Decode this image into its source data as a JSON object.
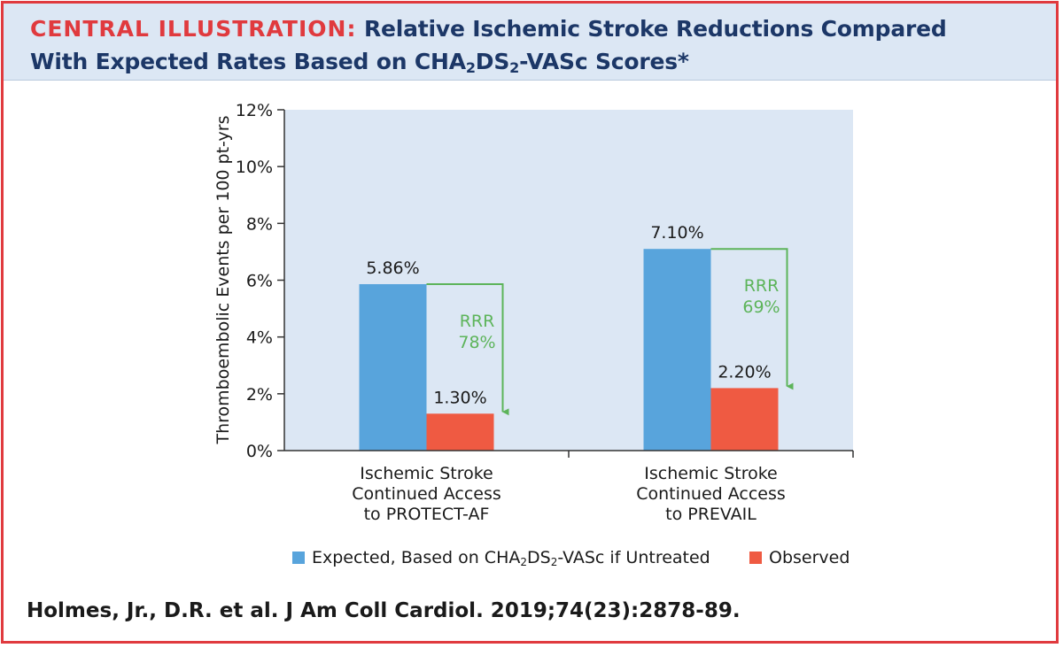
{
  "header": {
    "kicker": "CENTRAL ILLUSTRATION:",
    "title_part1": " Relative Ischemic Stroke Reductions Compared",
    "title_part2": "With Expected Rates Based on CHA",
    "sub1": "2",
    "title_part3": "DS",
    "sub2": "2",
    "title_part4": "-VASc Scores*"
  },
  "colors": {
    "expected": "#58a4dc",
    "observed": "#ef5a42",
    "arrow": "#5db45a",
    "accent": "#e03a3e",
    "navy": "#1c3767",
    "plot_bg": "#dce7f4"
  },
  "chart_data": {
    "type": "bar",
    "ylabel": "Thromboembolic Events per 100 pt-yrs",
    "ylim": [
      0,
      12
    ],
    "yticks": [
      0,
      2,
      4,
      6,
      8,
      10,
      12
    ],
    "yticks_labels": [
      "0%",
      "2%",
      "4%",
      "6%",
      "8%",
      "10%",
      "12%"
    ],
    "categories": [
      [
        "Ischemic Stroke",
        "Continued Access",
        "to PROTECT-AF"
      ],
      [
        "Ischemic Stroke",
        "Continued Access",
        "to PREVAIL"
      ]
    ],
    "series": [
      {
        "name": "Expected",
        "values": [
          5.86,
          7.1
        ],
        "labels": [
          "5.86%",
          "7.10%"
        ]
      },
      {
        "name": "Observed",
        "values": [
          1.3,
          2.2
        ],
        "labels": [
          "1.30%",
          "2.20%"
        ]
      }
    ],
    "annotations": [
      {
        "group": 0,
        "line1": "RRR",
        "line2": "78%"
      },
      {
        "group": 1,
        "line1": "RRR",
        "line2": "69%"
      }
    ]
  },
  "legend": {
    "expected_part1": "Expected, Based on CHA",
    "expected_sub1": "2",
    "expected_part2": "DS",
    "expected_sub2": "2",
    "expected_part3": "-VASc if Untreated",
    "observed": "Observed"
  },
  "citation": "Holmes, Jr., D.R. et al. J Am Coll Cardiol. 2019;74(23):2878-89."
}
